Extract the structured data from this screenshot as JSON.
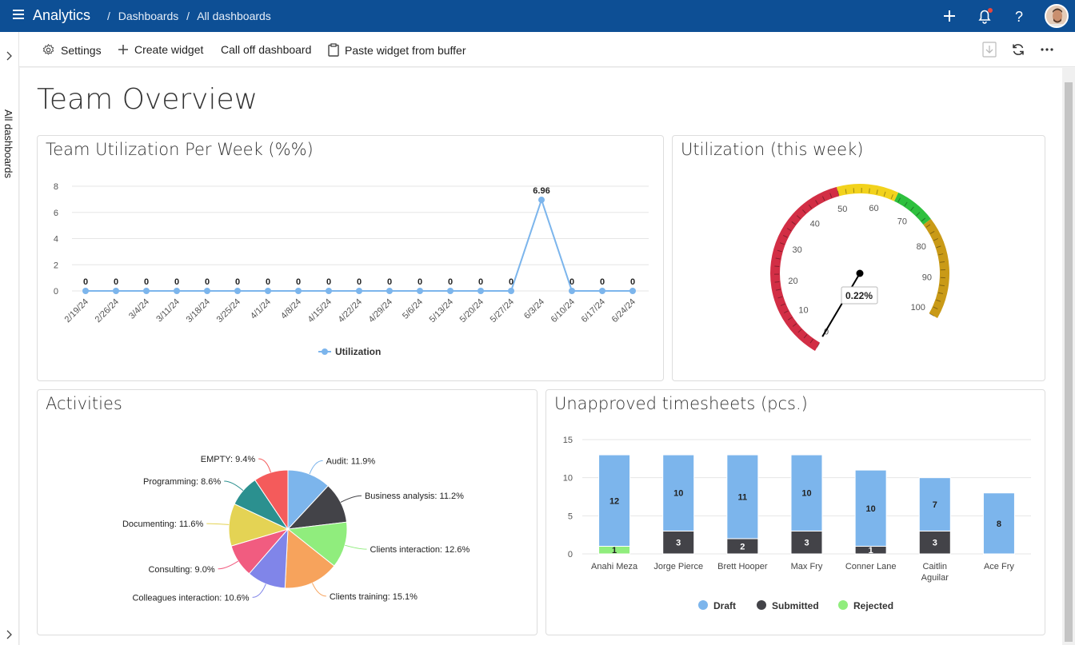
{
  "header": {
    "app_name": "Analytics",
    "breadcrumb": [
      "Dashboards",
      "All dashboards"
    ],
    "brand_color": "#0d4f95"
  },
  "sidebar": {
    "label": "All dashboards"
  },
  "toolbar": {
    "settings": "Settings",
    "create_widget": "Create widget",
    "call_off": "Call off dashboard",
    "paste_widget": "Paste widget from buffer"
  },
  "page": {
    "title": "Team Overview"
  },
  "widgets": {
    "utilization_week": "Team Utilization Per Week (%%)",
    "utilization_now": "Utilization (this week)",
    "activities": "Activities",
    "timesheets": "Unapproved timesheets (pcs.)"
  },
  "chart_data": [
    {
      "type": "line",
      "title": "Team Utilization Per Week (%%)",
      "x": [
        "2/19/24",
        "2/26/24",
        "3/4/24",
        "3/11/24",
        "3/18/24",
        "3/25/24",
        "4/1/24",
        "4/8/24",
        "4/15/24",
        "4/22/24",
        "4/29/24",
        "5/6/24",
        "5/13/24",
        "5/20/24",
        "5/27/24",
        "6/3/24",
        "6/10/24",
        "6/17/24",
        "6/24/24"
      ],
      "series": [
        {
          "name": "Utilization",
          "values": [
            0,
            0,
            0,
            0,
            0,
            0,
            0,
            0,
            0,
            0,
            0,
            0,
            0,
            0,
            0,
            6.96,
            0,
            0,
            0
          ],
          "color": "#7cb5ec"
        }
      ],
      "data_labels": [
        "0",
        "0",
        "0",
        "0",
        "0",
        "0",
        "0",
        "0",
        "0",
        "0",
        "0",
        "0",
        "0",
        "0",
        "0",
        "6.96",
        "0",
        "0",
        "0"
      ],
      "ylim": [
        0,
        8
      ],
      "yticks": [
        "0",
        "2",
        "4",
        "6",
        "8"
      ],
      "legend": "bottom"
    },
    {
      "type": "gauge",
      "title": "Utilization (this week)",
      "value": 0.22,
      "value_label": "0.22%",
      "range": [
        0,
        100
      ],
      "tick_labels": [
        "0",
        "10",
        "20",
        "30",
        "40",
        "50",
        "60",
        "70",
        "80",
        "90",
        "100"
      ],
      "bands": [
        {
          "from": 0,
          "to": 50,
          "color": "#d22e45"
        },
        {
          "from": 50,
          "to": 65,
          "color": "#f2d21c"
        },
        {
          "from": 65,
          "to": 75,
          "color": "#2ec03e"
        },
        {
          "from": 75,
          "to": 100,
          "color": "#c99a17"
        }
      ]
    },
    {
      "type": "pie",
      "title": "Activities",
      "slices": [
        {
          "label": "Audit: 11.9%",
          "value": 11.9,
          "color": "#7cb5ec"
        },
        {
          "label": "Business analysis: 11.2%",
          "value": 11.2,
          "color": "#434348"
        },
        {
          "label": "Clients interaction: 12.6%",
          "value": 12.6,
          "color": "#90ed7d"
        },
        {
          "label": "Clients training: 15.1%",
          "value": 15.1,
          "color": "#f7a35c"
        },
        {
          "label": "Colleagues interaction: 10.6%",
          "value": 10.6,
          "color": "#8085e9"
        },
        {
          "label": "Consulting: 9.0%",
          "value": 9.0,
          "color": "#f15c80"
        },
        {
          "label": "Documenting: 11.6%",
          "value": 11.6,
          "color": "#e4d354"
        },
        {
          "label": "Programming: 8.6%",
          "value": 8.6,
          "color": "#2b908f"
        },
        {
          "label": "EMPTY: 9.4%",
          "value": 9.4,
          "color": "#f45b5b"
        }
      ]
    },
    {
      "type": "bar",
      "stacked": true,
      "title": "Unapproved timesheets (pcs.)",
      "categories": [
        "Anahi Meza",
        "Jorge Pierce",
        "Brett Hooper",
        "Max Fry",
        "Conner Lane",
        "Caitlin Aguilar",
        "Ace Fry"
      ],
      "series": [
        {
          "name": "Draft",
          "values": [
            12,
            10,
            11,
            10,
            10,
            7,
            8
          ],
          "color": "#7cb5ec"
        },
        {
          "name": "Submitted",
          "values": [
            0,
            3,
            2,
            3,
            1,
            3,
            0
          ],
          "color": "#434348"
        },
        {
          "name": "Rejected",
          "values": [
            1,
            0,
            0,
            0,
            0,
            0,
            0
          ],
          "color": "#90ed7d"
        }
      ],
      "ylim": [
        0,
        15
      ],
      "yticks": [
        "0",
        "5",
        "10",
        "15"
      ],
      "legend": "bottom"
    }
  ]
}
